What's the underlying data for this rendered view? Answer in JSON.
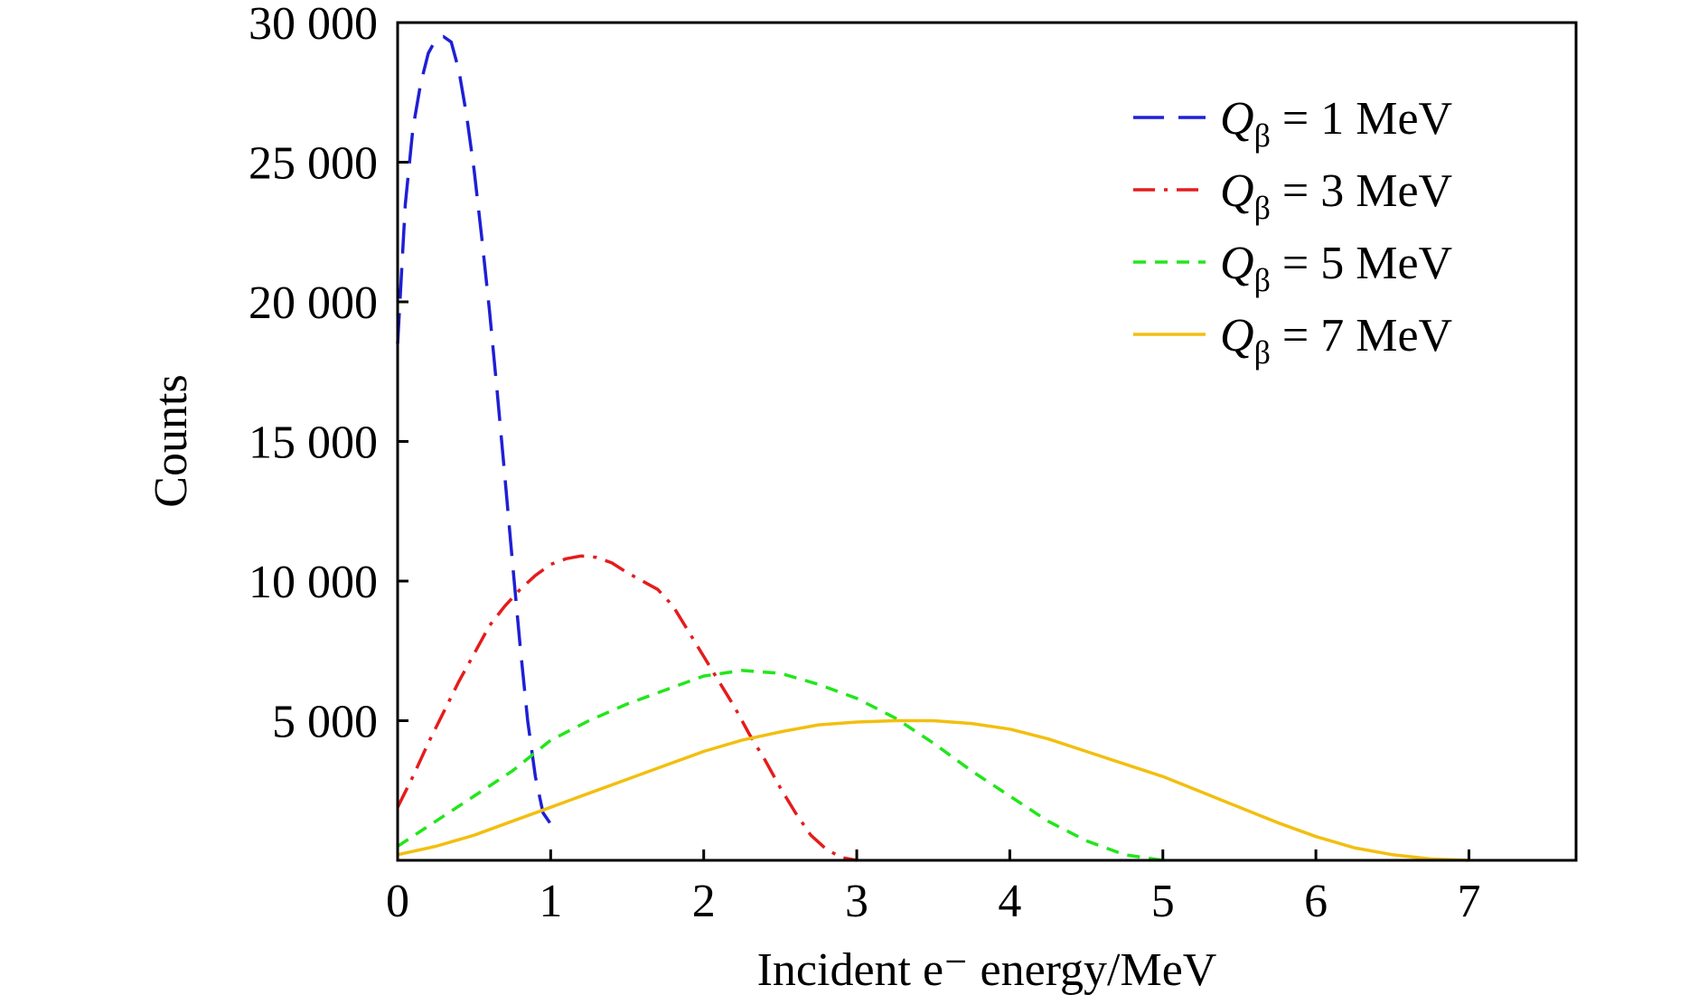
{
  "chart_data": {
    "type": "line",
    "title": "",
    "xlabel": "Incident e⁻ energy/MeV",
    "ylabel": "Counts",
    "xlim": [
      0,
      7.7
    ],
    "ylim": [
      0,
      30000
    ],
    "x_ticks": [
      0,
      1,
      2,
      3,
      4,
      5,
      6,
      7
    ],
    "x_tick_labels": [
      "0",
      "1",
      "2",
      "3",
      "4",
      "5",
      "6",
      "7"
    ],
    "y_ticks": [
      5000,
      10000,
      15000,
      20000,
      25000,
      30000
    ],
    "y_tick_labels": [
      "5 000",
      "10 000",
      "15 000",
      "20 000",
      "25 000",
      "30 000"
    ],
    "grid": false,
    "legend_position": "top-right",
    "series": [
      {
        "name": "Qβ = 1 MeV",
        "legend_symbol": "Q",
        "legend_subscript": "β",
        "legend_suffix": " = 1 MeV",
        "color": "#1f1fd6",
        "style": "long-dash",
        "x": [
          0.0,
          0.05,
          0.1,
          0.15,
          0.2,
          0.25,
          0.3,
          0.35,
          0.4,
          0.45,
          0.5,
          0.55,
          0.6,
          0.65,
          0.7,
          0.75,
          0.8,
          0.85,
          0.9,
          0.95,
          1.0
        ],
        "y": [
          18500,
          23500,
          26200,
          27800,
          28900,
          29400,
          29500,
          29300,
          28300,
          26700,
          24700,
          22300,
          19700,
          16800,
          13800,
          10700,
          7700,
          5000,
          3000,
          1700,
          1300
        ]
      },
      {
        "name": "Qβ = 3 MeV",
        "legend_symbol": "Q",
        "legend_subscript": "β",
        "legend_suffix": " = 3 MeV",
        "color": "#e51c1c",
        "style": "dash-dot",
        "x": [
          0.0,
          0.1,
          0.2,
          0.3,
          0.4,
          0.5,
          0.6,
          0.7,
          0.8,
          0.9,
          1.0,
          1.1,
          1.2,
          1.3,
          1.4,
          1.5,
          1.6,
          1.7,
          1.8,
          1.9,
          2.0,
          2.1,
          2.2,
          2.3,
          2.4,
          2.5,
          2.6,
          2.7,
          2.8,
          2.9,
          3.0
        ],
        "y": [
          1900,
          3000,
          4200,
          5300,
          6400,
          7400,
          8400,
          9100,
          9700,
          10200,
          10600,
          10800,
          10900,
          10850,
          10650,
          10300,
          10000,
          9700,
          9100,
          8200,
          7300,
          6400,
          5500,
          4500,
          3600,
          2600,
          1700,
          900,
          400,
          100,
          0
        ]
      },
      {
        "name": "Qβ = 5 MeV",
        "legend_symbol": "Q",
        "legend_subscript": "β",
        "legend_suffix": " = 5 MeV",
        "color": "#22e61c",
        "style": "short-dash",
        "x": [
          0.0,
          0.25,
          0.5,
          0.75,
          1.0,
          1.25,
          1.5,
          1.75,
          2.0,
          2.25,
          2.5,
          2.75,
          3.0,
          3.25,
          3.5,
          3.75,
          4.0,
          4.25,
          4.5,
          4.75,
          5.0
        ],
        "y": [
          500,
          1400,
          2300,
          3200,
          4300,
          5000,
          5600,
          6100,
          6600,
          6800,
          6700,
          6300,
          5800,
          5100,
          4200,
          3200,
          2300,
          1400,
          700,
          200,
          0
        ]
      },
      {
        "name": "Qβ = 7 MeV",
        "legend_symbol": "Q",
        "legend_subscript": "β",
        "legend_suffix": " = 7 MeV",
        "color": "#f2bf10",
        "style": "solid",
        "x": [
          0.0,
          0.25,
          0.5,
          0.75,
          1.0,
          1.25,
          1.5,
          1.75,
          2.0,
          2.25,
          2.5,
          2.75,
          3.0,
          3.25,
          3.5,
          3.75,
          4.0,
          4.25,
          4.5,
          4.75,
          5.0,
          5.25,
          5.5,
          5.75,
          6.0,
          6.25,
          6.5,
          6.75,
          7.0
        ],
        "y": [
          200,
          500,
          900,
          1400,
          1900,
          2400,
          2900,
          3400,
          3900,
          4300,
          4600,
          4850,
          4950,
          5000,
          5000,
          4900,
          4700,
          4350,
          3900,
          3450,
          3000,
          2450,
          1900,
          1350,
          850,
          450,
          200,
          50,
          0
        ]
      }
    ]
  }
}
